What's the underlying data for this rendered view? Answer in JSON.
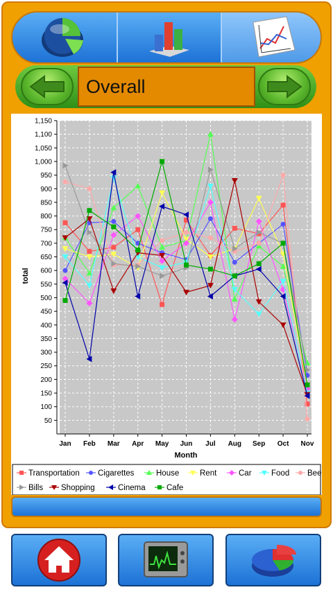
{
  "header": {
    "title": "Overall",
    "tabs": [
      {
        "icon": "pie-chart-icon"
      },
      {
        "icon": "bar-chart-icon"
      },
      {
        "icon": "line-chart-icon",
        "active": true
      }
    ]
  },
  "footer": {
    "buttons": [
      {
        "icon": "home-icon"
      },
      {
        "icon": "monitor-graph-icon"
      },
      {
        "icon": "3d-pie-icon"
      }
    ]
  },
  "colors": {
    "frame": "#f0a000",
    "accent_blue": "#2f86e6",
    "nav_green": "#4caf2a",
    "title_orange": "#e38a00",
    "plot_bg": "#c8c8c8"
  },
  "chart_data": {
    "type": "line",
    "xlabel": "Month",
    "ylabel": "total",
    "ylim": [
      0,
      1150
    ],
    "yticks": [
      50,
      100,
      150,
      200,
      250,
      300,
      350,
      400,
      450,
      500,
      550,
      600,
      650,
      700,
      750,
      800,
      850,
      900,
      950,
      1000,
      1050,
      1100,
      1150
    ],
    "ytick_labels": [
      "50",
      "100",
      "150",
      "200",
      "250",
      "300",
      "350",
      "400",
      "450",
      "500",
      "550",
      "600",
      "650",
      "700",
      "750",
      "800",
      "850",
      "900",
      "950",
      "1,000",
      "1,050",
      "1,100",
      "1,150"
    ],
    "categories": [
      "Jan",
      "Feb",
      "Mar",
      "Apr",
      "May",
      "Jun",
      "Jul",
      "Aug",
      "Sep",
      "Oct",
      "Nov"
    ],
    "grid": true,
    "legend_position": "bottom",
    "series": [
      {
        "name": "Transportation",
        "color": "#ff5555",
        "marker": "square",
        "values": [
          775,
          670,
          685,
          750,
          475,
          785,
          655,
          755,
          735,
          840,
          110
        ]
      },
      {
        "name": "Cigarettes",
        "color": "#5555ff",
        "marker": "circle",
        "values": [
          600,
          775,
          780,
          700,
          665,
          640,
          790,
          630,
          700,
          770,
          215
        ]
      },
      {
        "name": "House",
        "color": "#55ff55",
        "marker": "triangle-up",
        "values": [
          720,
          590,
          830,
          910,
          685,
          710,
          1100,
          495,
          690,
          615,
          260
        ]
      },
      {
        "name": "Rent",
        "color": "#ffff55",
        "marker": "triangle-down",
        "values": [
          680,
          650,
          660,
          610,
          885,
          715,
          650,
          680,
          865,
          660,
          175
        ]
      },
      {
        "name": "Car",
        "color": "#ff55ff",
        "marker": "diamond",
        "values": [
          570,
          480,
          730,
          800,
          635,
          700,
          850,
          420,
          780,
          530,
          165
        ]
      },
      {
        "name": "Food",
        "color": "#55ffff",
        "marker": "triangle-down",
        "values": [
          650,
          545,
          940,
          650,
          610,
          630,
          910,
          530,
          440,
          560,
          150
        ]
      },
      {
        "name": "Beers",
        "color": "#ffaaaa",
        "marker": "circle",
        "values": [
          925,
          900,
          620,
          620,
          710,
          740,
          720,
          670,
          700,
          950,
          55
        ]
      },
      {
        "name": "Bills",
        "color": "#999999",
        "marker": "triangle-right",
        "values": [
          985,
          740,
          625,
          615,
          580,
          610,
          970,
          680,
          740,
          700,
          235
        ]
      },
      {
        "name": "Shopping",
        "color": "#aa0000",
        "marker": "triangle-down",
        "values": [
          720,
          790,
          525,
          665,
          655,
          520,
          545,
          930,
          485,
          400,
          145
        ]
      },
      {
        "name": "Cinema",
        "color": "#0000aa",
        "marker": "triangle-left",
        "values": [
          555,
          275,
          960,
          505,
          835,
          805,
          505,
          580,
          605,
          505,
          140
        ]
      },
      {
        "name": "Cafe",
        "color": "#00aa00",
        "marker": "square",
        "values": [
          490,
          820,
          760,
          675,
          1000,
          620,
          605,
          580,
          625,
          700,
          180
        ]
      }
    ]
  }
}
